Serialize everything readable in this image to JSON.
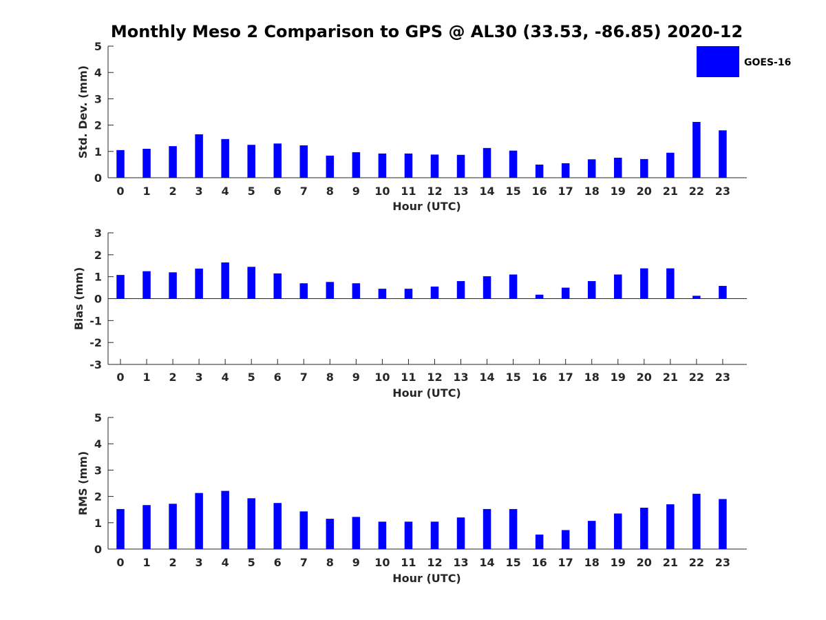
{
  "title": "Monthly Meso 2 Comparison to GPS @ AL30 (33.53, -86.85) 2020-12",
  "legend": {
    "label": "GOES-16",
    "color": "#0000ff"
  },
  "chart_data": [
    {
      "type": "bar",
      "xlabel": "Hour (UTC)",
      "ylabel": "Std. Dev. (mm)",
      "ylim": [
        0,
        5
      ],
      "yticks": [
        "0",
        "1",
        "2",
        "3",
        "4",
        "5"
      ],
      "categories": [
        "0",
        "1",
        "2",
        "3",
        "4",
        "5",
        "6",
        "7",
        "8",
        "9",
        "10",
        "11",
        "12",
        "13",
        "14",
        "15",
        "16",
        "17",
        "18",
        "19",
        "20",
        "21",
        "22",
        "23"
      ],
      "series": [
        {
          "name": "GOES-16",
          "color": "#0000ff",
          "values": [
            1.05,
            1.1,
            1.2,
            1.65,
            1.47,
            1.25,
            1.3,
            1.23,
            0.84,
            0.97,
            0.92,
            0.92,
            0.88,
            0.87,
            1.13,
            1.03,
            0.5,
            0.55,
            0.7,
            0.76,
            0.71,
            0.95,
            2.12,
            1.8
          ]
        }
      ],
      "legend_position": "top-right"
    },
    {
      "type": "bar",
      "xlabel": "Hour (UTC)",
      "ylabel": "Bias (mm)",
      "ylim": [
        -3,
        3
      ],
      "yticks": [
        "-3",
        "-2",
        "-1",
        "0",
        "1",
        "2",
        "3"
      ],
      "categories": [
        "0",
        "1",
        "2",
        "3",
        "4",
        "5",
        "6",
        "7",
        "8",
        "9",
        "10",
        "11",
        "12",
        "13",
        "14",
        "15",
        "16",
        "17",
        "18",
        "19",
        "20",
        "21",
        "22",
        "23"
      ],
      "series": [
        {
          "name": "GOES-16",
          "color": "#0000ff",
          "values": [
            1.08,
            1.25,
            1.2,
            1.37,
            1.65,
            1.45,
            1.15,
            0.7,
            0.76,
            0.7,
            0.45,
            0.45,
            0.55,
            0.8,
            1.02,
            1.1,
            0.18,
            0.5,
            0.8,
            1.1,
            1.38,
            1.38,
            0.13,
            0.58
          ]
        }
      ]
    },
    {
      "type": "bar",
      "xlabel": "Hour (UTC)",
      "ylabel": "RMS (mm)",
      "ylim": [
        0,
        5
      ],
      "yticks": [
        "0",
        "1",
        "2",
        "3",
        "4",
        "5"
      ],
      "categories": [
        "0",
        "1",
        "2",
        "3",
        "4",
        "5",
        "6",
        "7",
        "8",
        "9",
        "10",
        "11",
        "12",
        "13",
        "14",
        "15",
        "16",
        "17",
        "18",
        "19",
        "20",
        "21",
        "22",
        "23"
      ],
      "series": [
        {
          "name": "GOES-16",
          "color": "#0000ff",
          "values": [
            1.52,
            1.67,
            1.72,
            2.13,
            2.21,
            1.93,
            1.75,
            1.43,
            1.15,
            1.22,
            1.04,
            1.04,
            1.04,
            1.2,
            1.52,
            1.52,
            0.55,
            0.72,
            1.07,
            1.35,
            1.57,
            1.7,
            2.1,
            1.9
          ]
        }
      ]
    }
  ]
}
